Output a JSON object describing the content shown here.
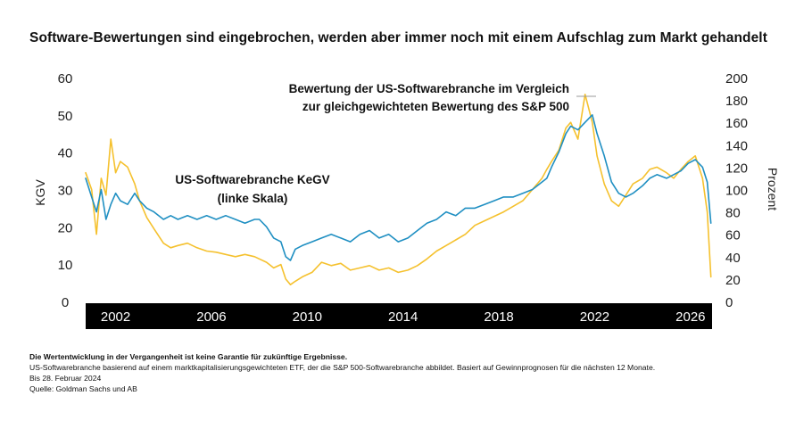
{
  "chart_data": {
    "type": "line",
    "title": "Software-Bewertungen sind eingebrochen, werden aber immer noch mit einem Aufschlag zum Markt gehandelt",
    "xlabel": "",
    "ylabel_left": "KGV",
    "ylabel_right": "Prozent",
    "xlim": [
      2000.75,
      2026.9
    ],
    "ylim_left": [
      0,
      60
    ],
    "ylim_right": [
      0,
      200
    ],
    "x_ticks": [
      "2002",
      "2006",
      "2010",
      "2014",
      "2018",
      "2022",
      "2026"
    ],
    "y_ticks_left": [
      "0",
      "10",
      "20",
      "30",
      "40",
      "50",
      "60"
    ],
    "y_ticks_right": [
      "0",
      "20",
      "40",
      "60",
      "80",
      "100",
      "120",
      "140",
      "160",
      "180",
      "200"
    ],
    "series": [
      {
        "name": "US-Softwarebranche KeGV (linke Skala)",
        "axis": "left",
        "color": "#1f8fc2",
        "x": [
          2000.75,
          2001.0,
          2001.2,
          2001.4,
          2001.6,
          2001.8,
          2002.0,
          2002.2,
          2002.5,
          2002.8,
          2003.0,
          2003.3,
          2003.6,
          2004.0,
          2004.3,
          2004.6,
          2005.0,
          2005.4,
          2005.8,
          2006.2,
          2006.6,
          2007.0,
          2007.4,
          2007.8,
          2008.0,
          2008.3,
          2008.6,
          2008.9,
          2009.1,
          2009.3,
          2009.5,
          2009.8,
          2010.2,
          2010.6,
          2011.0,
          2011.4,
          2011.8,
          2012.2,
          2012.6,
          2013.0,
          2013.4,
          2013.8,
          2014.2,
          2014.6,
          2015.0,
          2015.4,
          2015.8,
          2016.2,
          2016.6,
          2017.0,
          2017.4,
          2017.8,
          2018.2,
          2018.6,
          2019.0,
          2019.4,
          2019.8,
          2020.0,
          2020.2,
          2020.5,
          2020.8,
          2021.0,
          2021.3,
          2021.6,
          2021.9,
          2022.1,
          2022.4,
          2022.7,
          2023.0,
          2023.3,
          2023.6,
          2024.0,
          2024.3,
          2024.6,
          2025.0,
          2025.3,
          2025.6,
          2025.9,
          2026.2,
          2026.5,
          2026.7,
          2026.85
        ],
        "values": [
          33,
          28,
          24,
          30,
          22,
          26,
          29,
          27,
          26,
          29,
          27,
          25,
          24,
          22,
          23,
          22,
          23,
          22,
          23,
          22,
          23,
          22,
          21,
          22,
          22,
          20,
          17,
          16,
          12,
          11,
          14,
          15,
          16,
          17,
          18,
          17,
          16,
          18,
          19,
          17,
          18,
          16,
          17,
          19,
          21,
          22,
          24,
          23,
          25,
          25,
          26,
          27,
          28,
          28,
          29,
          30,
          32,
          33,
          36,
          40,
          45,
          47,
          46,
          48,
          50,
          45,
          39,
          32,
          29,
          28,
          29,
          31,
          33,
          34,
          33,
          34,
          35,
          37,
          38,
          36,
          32,
          21
        ]
      },
      {
        "name": "Bewertung der US-Softwarebranche im Vergleich zur gleichgewichteten Bewertung des S&P 500",
        "axis": "right",
        "color": "#f5c12e",
        "x": [
          2000.75,
          2001.0,
          2001.2,
          2001.4,
          2001.6,
          2001.8,
          2002.0,
          2002.2,
          2002.5,
          2002.8,
          2003.0,
          2003.3,
          2003.6,
          2004.0,
          2004.3,
          2004.6,
          2005.0,
          2005.4,
          2005.8,
          2006.2,
          2006.6,
          2007.0,
          2007.4,
          2007.8,
          2008.0,
          2008.3,
          2008.6,
          2008.9,
          2009.1,
          2009.3,
          2009.5,
          2009.8,
          2010.2,
          2010.6,
          2011.0,
          2011.4,
          2011.8,
          2012.2,
          2012.6,
          2013.0,
          2013.4,
          2013.8,
          2014.2,
          2014.6,
          2015.0,
          2015.4,
          2015.8,
          2016.2,
          2016.6,
          2017.0,
          2017.4,
          2017.8,
          2018.2,
          2018.6,
          2019.0,
          2019.4,
          2019.8,
          2020.0,
          2020.2,
          2020.5,
          2020.8,
          2021.0,
          2021.3,
          2021.6,
          2021.9,
          2022.1,
          2022.4,
          2022.7,
          2023.0,
          2023.3,
          2023.6,
          2024.0,
          2024.3,
          2024.6,
          2025.0,
          2025.3,
          2025.6,
          2025.9,
          2026.2,
          2026.5,
          2026.7,
          2026.85
        ],
        "values": [
          115,
          100,
          60,
          110,
          95,
          145,
          115,
          125,
          120,
          105,
          90,
          75,
          65,
          52,
          48,
          50,
          52,
          48,
          45,
          44,
          42,
          40,
          42,
          40,
          38,
          35,
          30,
          33,
          20,
          15,
          18,
          22,
          26,
          35,
          32,
          34,
          28,
          30,
          32,
          28,
          30,
          26,
          28,
          32,
          38,
          45,
          50,
          55,
          60,
          68,
          72,
          76,
          80,
          85,
          90,
          100,
          110,
          118,
          125,
          135,
          155,
          160,
          145,
          185,
          160,
          130,
          105,
          90,
          85,
          95,
          105,
          110,
          118,
          120,
          115,
          110,
          118,
          125,
          130,
          110,
          80,
          22
        ]
      }
    ],
    "annotations": {
      "series1_label_line1": "US-Softwarebranche KeGV",
      "series1_label_line2": "(linke Skala)",
      "series2_label_line1": "Bewertung der US-Softwarebranche im Vergleich",
      "series2_label_line2": "zur gleichgewichteten Bewertung des S&P 500"
    },
    "grid": false,
    "legend": "none"
  },
  "notes": {
    "disclaimer": "Die Wertentwicklung in der Vergangenheit ist keine Garantie für zukünftige Ergebnisse.",
    "methodology": "US-Softwarebranche basierend auf einem marktkapitalisierungsgewichteten ETF, der die S&P 500-Softwarebranche abbildet. Basiert auf Gewinnprognosen für die nächsten 12 Monate.",
    "date": "Bis 28. Februar 2024",
    "source": "Quelle: Goldman Sachs und AB"
  }
}
